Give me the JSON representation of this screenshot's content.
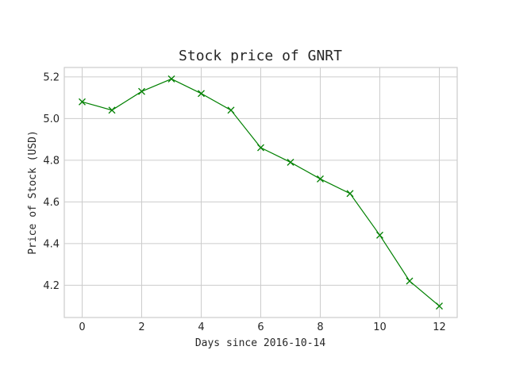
{
  "chart_data": {
    "type": "line",
    "title": "Stock price of GNRT",
    "xlabel": "Days since 2016-10-14",
    "ylabel": "Price of Stock (USD)",
    "xlim": [
      -0.6,
      12.6
    ],
    "ylim": [
      4.045,
      5.245
    ],
    "x_ticks": [
      0,
      2,
      4,
      6,
      8,
      10,
      12
    ],
    "y_ticks": [
      4.2,
      4.4,
      4.6,
      4.8,
      5.0,
      5.2
    ],
    "y_tick_labels": [
      "4.2",
      "4.4",
      "4.6",
      "4.8",
      "5.0",
      "5.2"
    ],
    "grid": true,
    "series": [
      {
        "color": "#008000",
        "marker": "x",
        "x": [
          0,
          1,
          2,
          3,
          4,
          5,
          6,
          7,
          8,
          9,
          10,
          11,
          12
        ],
        "values": [
          5.08,
          5.04,
          5.13,
          5.19,
          5.12,
          5.04,
          4.86,
          4.79,
          4.71,
          4.64,
          4.44,
          4.22,
          4.1
        ]
      }
    ]
  }
}
